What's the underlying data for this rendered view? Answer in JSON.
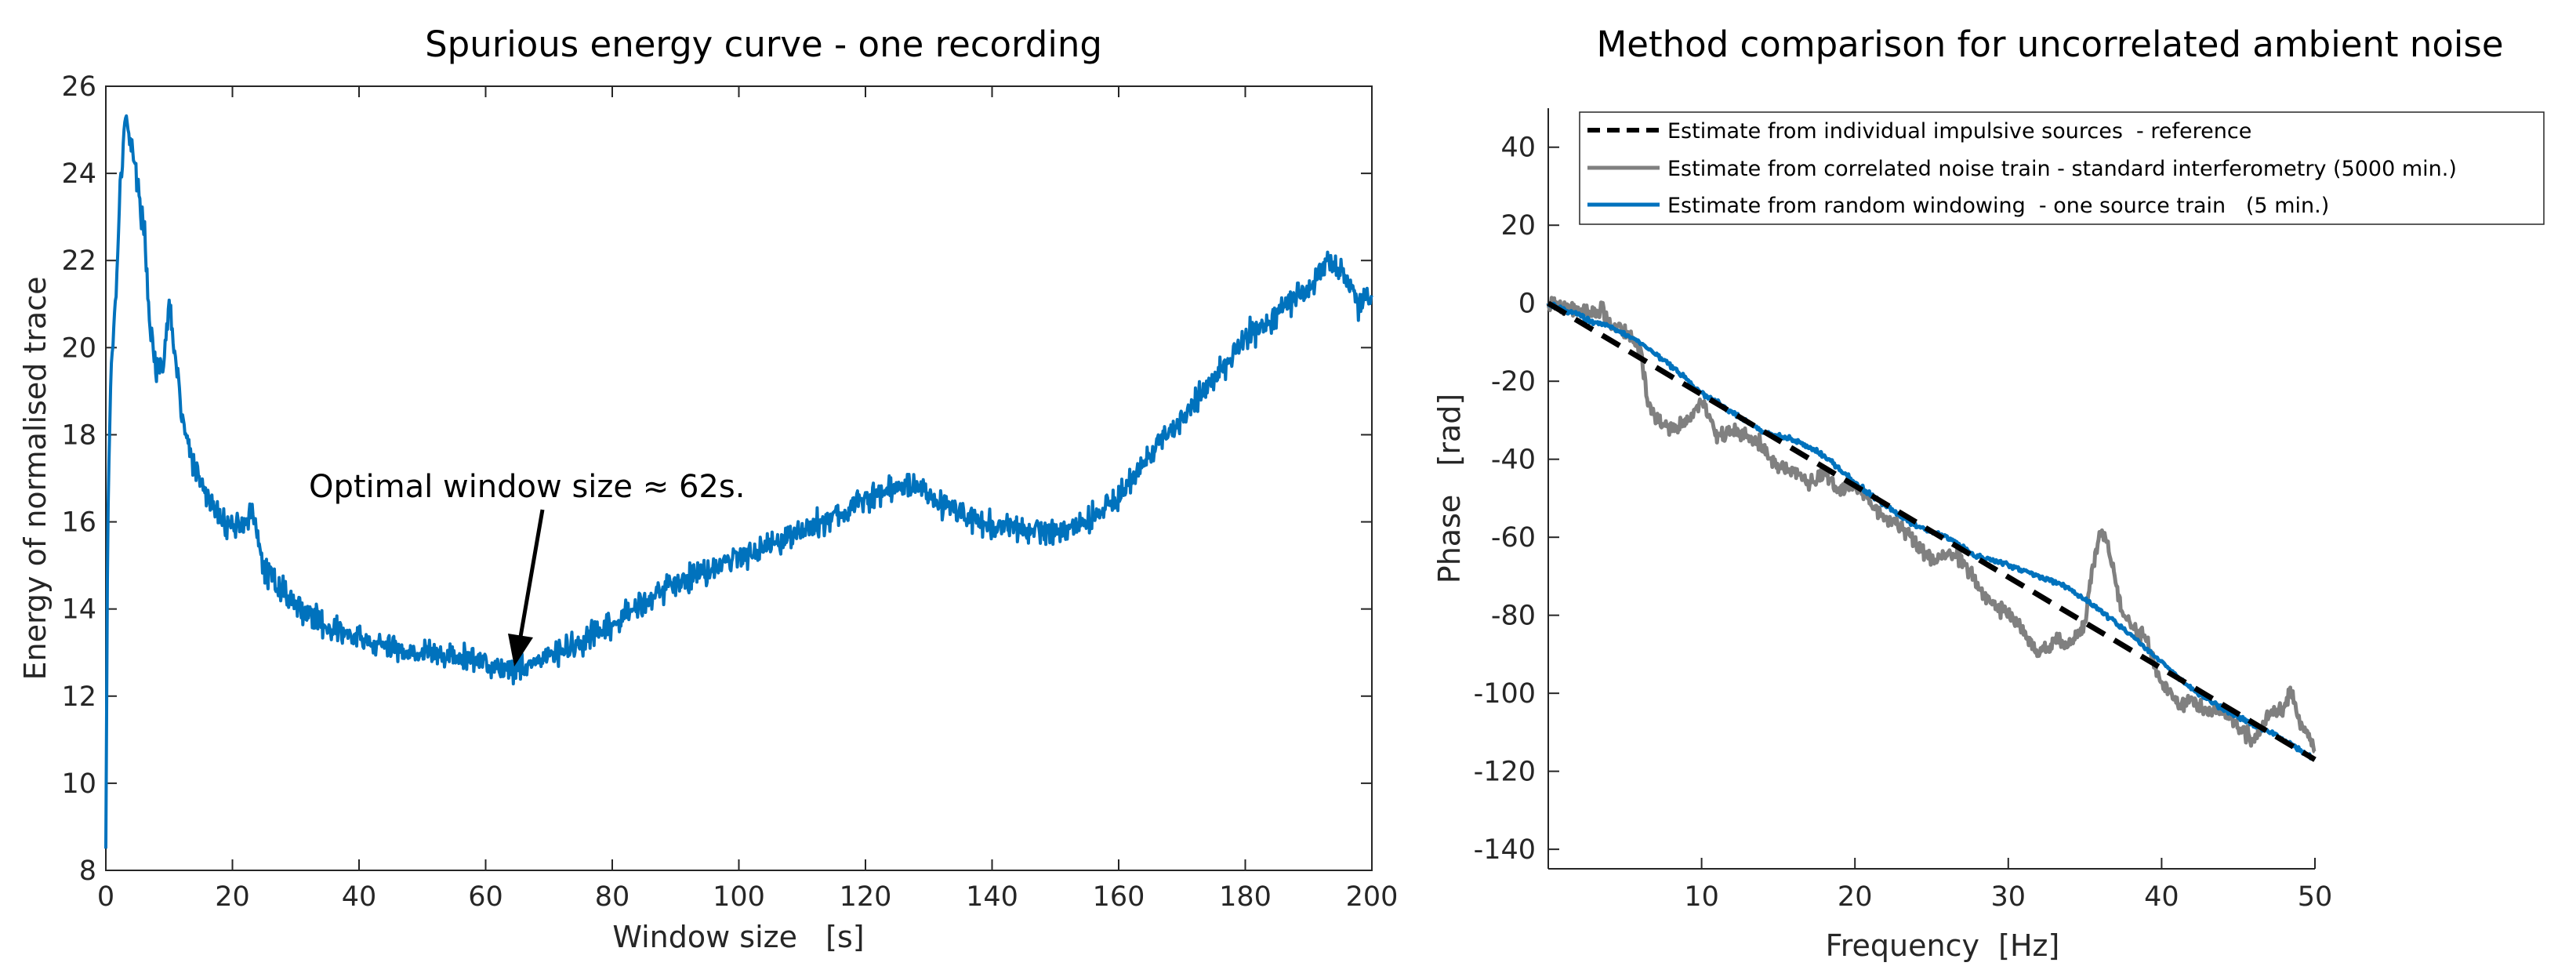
{
  "chart_data": [
    {
      "type": "line",
      "title": "Spurious energy curve - one recording",
      "xlabel": "Window size   [s]",
      "ylabel": "Energy of normalised trace",
      "xlim": [
        0,
        200
      ],
      "ylim": [
        8,
        26
      ],
      "xticks": [
        0,
        20,
        40,
        60,
        80,
        100,
        120,
        140,
        160,
        180,
        200
      ],
      "yticks": [
        8,
        10,
        12,
        14,
        16,
        18,
        20,
        22,
        24,
        26
      ],
      "grid": false,
      "annotation": {
        "text": "Optimal window size ≈ 62s.",
        "points_to": [
          63,
          12.7
        ]
      },
      "series": [
        {
          "name": "Spurious energy",
          "color": "#0072BD",
          "noise": 0.25,
          "x": [
            0,
            0.3,
            0.8,
            1.5,
            2.2,
            3,
            4,
            5,
            6,
            7,
            8,
            9,
            10,
            11,
            12,
            14,
            16,
            18,
            20,
            22,
            23,
            24,
            25,
            27,
            30,
            35,
            40,
            45,
            50,
            55,
            60,
            63,
            66,
            70,
            75,
            80,
            85,
            90,
            95,
            100,
            105,
            110,
            115,
            120,
            125,
            128,
            130,
            135,
            140,
            145,
            150,
            155,
            160,
            165,
            170,
            175,
            180,
            185,
            190,
            193,
            196,
            198,
            200
          ],
          "y": [
            8.5,
            16,
            19.5,
            21,
            23.5,
            25.2,
            24.8,
            23.7,
            22.8,
            20.5,
            19.5,
            19.4,
            21,
            19.8,
            18.4,
            17.2,
            16.6,
            16.1,
            15.9,
            16,
            16.2,
            15.6,
            14.9,
            14.6,
            14.1,
            13.6,
            13.3,
            13.1,
            13.0,
            12.9,
            12.8,
            12.6,
            12.7,
            12.9,
            13.2,
            13.6,
            14.2,
            14.6,
            14.9,
            15.2,
            15.5,
            15.8,
            16.1,
            16.5,
            16.8,
            16.9,
            16.6,
            16.2,
            15.9,
            15.8,
            15.8,
            16.0,
            16.6,
            17.5,
            18.4,
            19.3,
            20.2,
            20.8,
            21.4,
            22.0,
            21.6,
            21.0,
            21.2
          ]
        }
      ]
    },
    {
      "type": "line",
      "title": "Method comparison for uncorrelated ambient noise",
      "xlabel": "Frequency  [Hz]",
      "ylabel": "Phase   [rad]",
      "xlim": [
        0,
        50
      ],
      "ylim": [
        -145,
        50
      ],
      "xticks": [
        10,
        20,
        30,
        40,
        50
      ],
      "yticks": [
        40,
        20,
        0,
        -20,
        -40,
        -60,
        -80,
        -100,
        -120,
        -140
      ],
      "grid": false,
      "legend_position": "top-right",
      "series": [
        {
          "name": "Estimate from individual impulsive sources  - reference",
          "color": "#000000",
          "dashed": true,
          "noise": 0,
          "x": [
            0,
            50
          ],
          "y": [
            0,
            -117
          ]
        },
        {
          "name": "Estimate from correlated noise train - standard interferometry (5000 min.)",
          "color": "#808080",
          "noise": 1.6,
          "x": [
            0,
            3,
            3.5,
            4,
            5,
            5.5,
            6,
            6.5,
            7,
            8,
            9,
            10,
            11,
            12,
            13,
            14,
            15,
            16,
            17,
            18,
            19,
            20,
            21,
            22,
            23,
            24,
            25,
            26,
            27,
            28,
            29,
            30,
            31,
            32,
            33,
            34,
            35,
            35.5,
            36,
            36.5,
            37,
            37.5,
            38,
            39,
            40,
            41,
            42,
            43,
            44,
            45,
            46,
            47,
            48,
            48.5,
            49,
            49.5,
            50
          ],
          "y": [
            0,
            -3,
            -1,
            -6,
            -7,
            -9,
            -12,
            -25,
            -30,
            -32,
            -31,
            -25,
            -34,
            -33,
            -34,
            -37,
            -42,
            -43,
            -46,
            -44,
            -48,
            -47,
            -51,
            -55,
            -57,
            -62,
            -66,
            -64,
            -66,
            -72,
            -77,
            -80,
            -84,
            -90,
            -86,
            -88,
            -82,
            -68,
            -58,
            -62,
            -72,
            -80,
            -83,
            -86,
            -97,
            -103,
            -102,
            -105,
            -104,
            -109,
            -112,
            -106,
            -103,
            -99,
            -108,
            -110,
            -115
          ]
        },
        {
          "name": "Estimate from random windowing  - one source train   (5 min.)",
          "color": "#0072BD",
          "noise": 0.5,
          "x": [
            0,
            2,
            3,
            4,
            6,
            8,
            10,
            12,
            14,
            16,
            18,
            20,
            22,
            24,
            26,
            28,
            30,
            32,
            34,
            36,
            38,
            40,
            42,
            44,
            46,
            48,
            50
          ],
          "y": [
            0,
            -3,
            -5,
            -6,
            -10,
            -16,
            -23,
            -28,
            -33,
            -35,
            -39,
            -46,
            -52,
            -57,
            -60,
            -65,
            -67,
            -70,
            -73,
            -79,
            -85,
            -92,
            -99,
            -104,
            -108,
            -112,
            -117
          ]
        }
      ]
    }
  ]
}
